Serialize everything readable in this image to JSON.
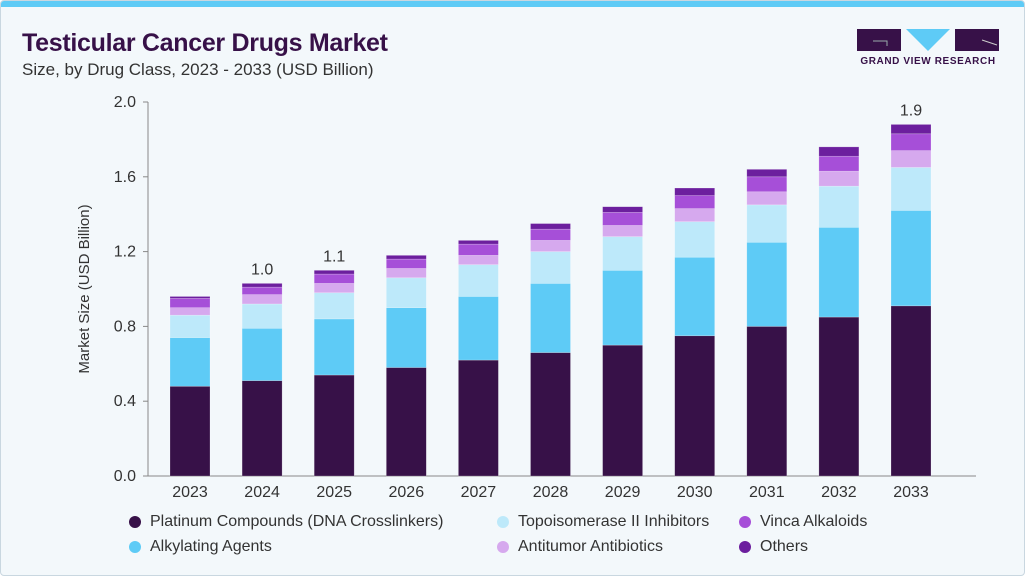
{
  "header": {
    "title": "Testicular Cancer Drugs Market",
    "subtitle": "Size, by Drug Class, 2023 - 2033 (USD Billion)"
  },
  "logo": {
    "text": "GRAND VIEW RESEARCH"
  },
  "chart_data": {
    "type": "bar",
    "stacked": true,
    "title": "Testicular Cancer Drugs Market",
    "ylabel": "Market Size (USD Billion)",
    "xlabel": "",
    "ylim": [
      0,
      2.0
    ],
    "yticks": [
      "0.0",
      "0.4",
      "0.8",
      "1.2",
      "1.6",
      "2.0"
    ],
    "categories": [
      "2023",
      "2024",
      "2025",
      "2026",
      "2027",
      "2028",
      "2029",
      "2030",
      "2031",
      "2032",
      "2033"
    ],
    "series": [
      {
        "name": "Platinum Compounds (DNA Crosslinkers)",
        "color": "#371148",
        "values": [
          0.48,
          0.51,
          0.54,
          0.58,
          0.62,
          0.66,
          0.7,
          0.75,
          0.8,
          0.85,
          0.91
        ]
      },
      {
        "name": "Alkylating Agents",
        "color": "#5ecbf6",
        "values": [
          0.26,
          0.28,
          0.3,
          0.32,
          0.34,
          0.37,
          0.4,
          0.42,
          0.45,
          0.48,
          0.51
        ]
      },
      {
        "name": "Topoisomerase II Inhibitors",
        "color": "#bde9fa",
        "values": [
          0.12,
          0.13,
          0.14,
          0.16,
          0.17,
          0.17,
          0.18,
          0.19,
          0.2,
          0.22,
          0.23
        ]
      },
      {
        "name": "Antitumor Antibiotics",
        "color": "#d6a9ee",
        "values": [
          0.04,
          0.05,
          0.05,
          0.05,
          0.05,
          0.06,
          0.06,
          0.07,
          0.07,
          0.08,
          0.09
        ]
      },
      {
        "name": "Vinca Alkaloids",
        "color": "#a64fd8",
        "values": [
          0.05,
          0.04,
          0.05,
          0.05,
          0.06,
          0.06,
          0.07,
          0.07,
          0.08,
          0.08,
          0.09
        ]
      },
      {
        "name": "Others",
        "color": "#6c1f9e",
        "values": [
          0.01,
          0.02,
          0.02,
          0.02,
          0.02,
          0.03,
          0.03,
          0.04,
          0.04,
          0.05,
          0.05
        ]
      }
    ],
    "data_labels": [
      {
        "category": "2024",
        "text": "1.0"
      },
      {
        "category": "2025",
        "text": "1.1"
      },
      {
        "category": "2033",
        "text": "1.9"
      }
    ],
    "grid": false,
    "legend_position": "bottom"
  },
  "legend_order": [
    0,
    2,
    4,
    1,
    3,
    5
  ]
}
